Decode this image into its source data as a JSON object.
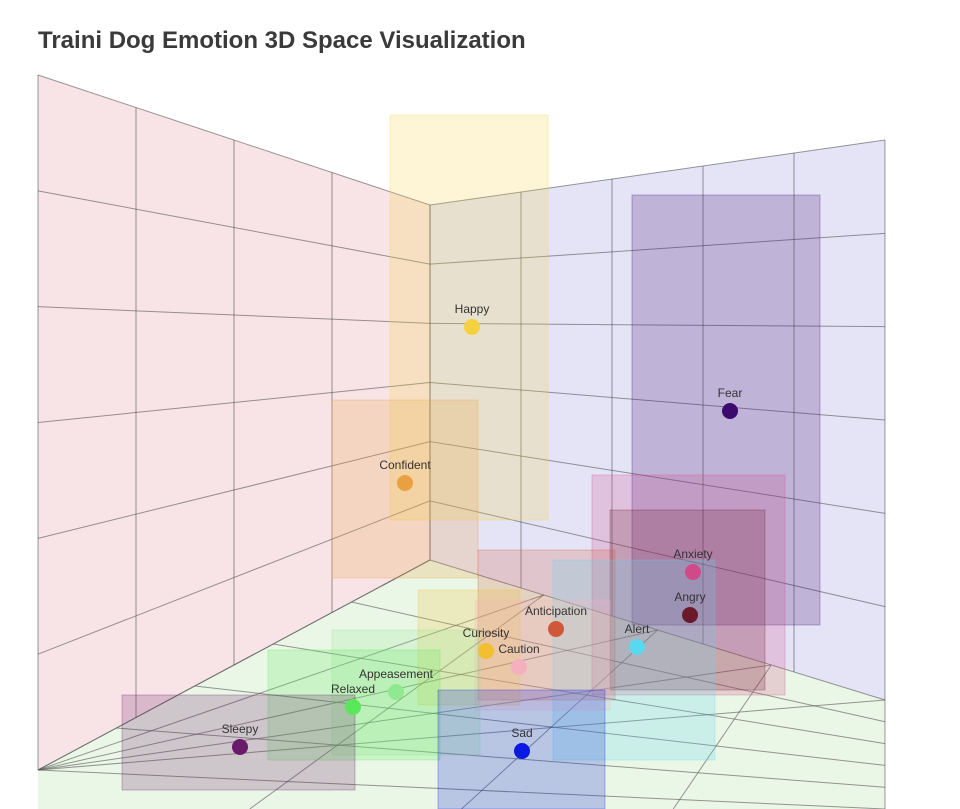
{
  "header": {
    "title": "Traini Dog Emotion 3D Space Visualization"
  },
  "nodes": [
    {
      "label": "Happy",
      "color": "#f5d040"
    },
    {
      "label": "Fear",
      "color": "#3d0a6e"
    },
    {
      "label": "Confident",
      "color": "#e8a040"
    },
    {
      "label": "Anxiety",
      "color": "#d04a8a"
    },
    {
      "label": "Angry",
      "color": "#6a1a2a"
    },
    {
      "label": "Anticipation",
      "color": "#d0583a"
    },
    {
      "label": "Alert",
      "color": "#5ad8f0"
    },
    {
      "label": "Curiosity",
      "color": "#f0c030"
    },
    {
      "label": "Caution",
      "color": "#f5b0c0"
    },
    {
      "label": "Appeasement",
      "color": "#90e890"
    },
    {
      "label": "Relaxed",
      "color": "#5ae85a"
    },
    {
      "label": "Sleepy",
      "color": "#6a1a6a"
    },
    {
      "label": "Sad",
      "color": "#0a1ae0"
    }
  ]
}
